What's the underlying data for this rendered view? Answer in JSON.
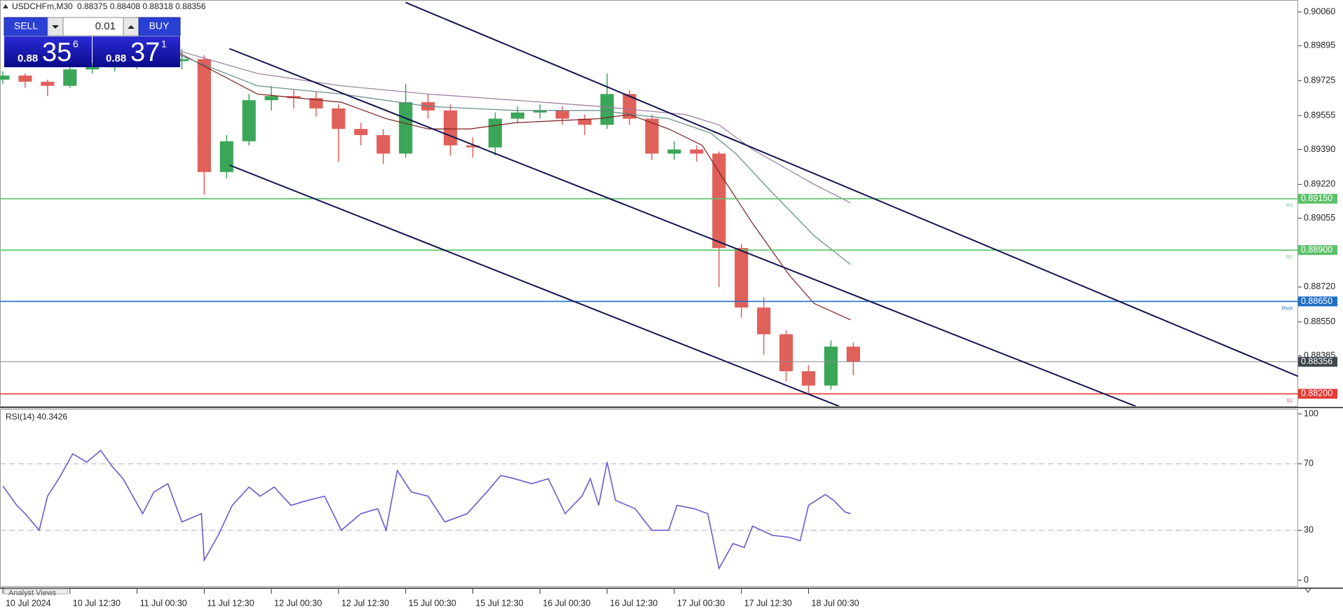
{
  "header": {
    "symbol": "USDCHFm,M30",
    "ohlc": "0.88375 0.88408 0.88318 0.88356"
  },
  "trade_panel": {
    "sell_label": "SELL",
    "buy_label": "BUY",
    "lot": "0.01",
    "sell_price": {
      "big": "0.88",
      "pips": "35",
      "fraction": "6"
    },
    "buy_price": {
      "big": "0.88",
      "pips": "37",
      "fraction": "1"
    }
  },
  "tabs": [
    "Analyst Views"
  ],
  "chart_data": [
    {
      "type": "candlestick",
      "x": [
        0,
        8,
        16,
        24,
        32,
        40,
        48,
        56,
        64,
        72,
        80,
        88,
        96,
        104,
        112,
        120,
        128,
        136,
        144,
        152,
        160,
        168,
        176,
        184,
        192,
        200,
        208,
        216,
        224,
        232,
        240,
        248,
        256,
        264,
        272,
        280,
        288,
        296,
        304
      ],
      "open": [
        0.8973,
        0.8975,
        0.8972,
        0.897,
        0.8978,
        0.8979,
        0.898,
        0.8981,
        0.8982,
        0.8983,
        0.8928,
        0.8943,
        0.8963,
        0.8965,
        0.8964,
        0.8959,
        0.8949,
        0.8946,
        0.8937,
        0.8962,
        0.8958,
        0.8941,
        0.894,
        0.8954,
        0.8957,
        0.8958,
        0.8954,
        0.8951,
        0.8966,
        0.8954,
        0.8937,
        0.8939,
        0.8937,
        0.8891,
        0.8862,
        0.8849,
        0.8831,
        0.8824,
        0.8843
      ],
      "high": [
        0.8977,
        0.8976,
        0.8973,
        0.8979,
        0.8981,
        0.8982,
        0.8983,
        0.8985,
        0.8988,
        0.8985,
        0.8946,
        0.8966,
        0.897,
        0.8968,
        0.8967,
        0.8961,
        0.8952,
        0.8949,
        0.8971,
        0.8966,
        0.8961,
        0.8945,
        0.8957,
        0.896,
        0.8961,
        0.896,
        0.8956,
        0.8976,
        0.8968,
        0.8956,
        0.8943,
        0.8941,
        0.8938,
        0.8893,
        0.8867,
        0.8851,
        0.8834,
        0.8846,
        0.8845
      ],
      "low": [
        0.8971,
        0.8969,
        0.8965,
        0.8969,
        0.8976,
        0.8977,
        0.8978,
        0.8979,
        0.8978,
        0.8917,
        0.8925,
        0.8941,
        0.8958,
        0.8959,
        0.8955,
        0.8933,
        0.8941,
        0.8932,
        0.8935,
        0.8954,
        0.8936,
        0.8935,
        0.8936,
        0.8952,
        0.8954,
        0.8951,
        0.8946,
        0.8949,
        0.8951,
        0.8934,
        0.8934,
        0.8933,
        0.8872,
        0.8857,
        0.8839,
        0.8826,
        0.882,
        0.8822,
        0.8829
      ],
      "close": [
        0.8975,
        0.8972,
        0.897,
        0.8978,
        0.8979,
        0.898,
        0.8981,
        0.8982,
        0.8983,
        0.8928,
        0.8943,
        0.8963,
        0.8965,
        0.8964,
        0.8959,
        0.8949,
        0.8946,
        0.8937,
        0.8962,
        0.8958,
        0.8941,
        0.894,
        0.8954,
        0.8957,
        0.8958,
        0.8954,
        0.8951,
        0.8966,
        0.8954,
        0.8937,
        0.8939,
        0.8937,
        0.8891,
        0.8862,
        0.8849,
        0.8831,
        0.8824,
        0.8843,
        0.88356
      ],
      "up_color": "#3aa657",
      "down_color": "#e0605a",
      "moving_averages": [
        {
          "color": "#7a1e1e",
          "x": [
            63,
            91,
            121,
            137,
            152,
            167,
            183,
            213,
            224,
            238,
            250,
            256,
            268,
            281,
            290,
            303
          ],
          "values": [
            0.8986,
            0.8966,
            0.8962,
            0.8954,
            0.8949,
            0.8949,
            0.8952,
            0.8954,
            0.8956,
            0.8949,
            0.8941,
            0.8928,
            0.8903,
            0.8878,
            0.8864,
            0.8856
          ]
        },
        {
          "color": "#5f8a86",
          "x": [
            63,
            91,
            121,
            152,
            183,
            213,
            238,
            253,
            262,
            275,
            290,
            303
          ],
          "values": [
            0.8985,
            0.897,
            0.8966,
            0.896,
            0.8958,
            0.8958,
            0.8954,
            0.8947,
            0.8937,
            0.8918,
            0.8897,
            0.8883
          ]
        },
        {
          "color": "#9a7aa0",
          "x": [
            63,
            91,
            121,
            152,
            183,
            213,
            244,
            256,
            268,
            290,
            303
          ],
          "values": [
            0.8987,
            0.8976,
            0.897,
            0.8966,
            0.8963,
            0.896,
            0.8956,
            0.8951,
            0.8939,
            0.8922,
            0.8913
          ]
        }
      ],
      "trendline_color": "#141450",
      "trendlines": [
        {
          "x": [
            144,
            463
          ],
          "values": [
            0.90106,
            0.88285
          ]
        },
        {
          "x": [
            81,
            405
          ],
          "values": [
            0.89881,
            0.88139
          ]
        },
        {
          "x": [
            81,
            299
          ],
          "values": [
            0.89314,
            0.88139
          ]
        }
      ],
      "levels": [
        {
          "name": "R3",
          "value": 0.8915,
          "label": "0.89150",
          "color": "#5cc26a"
        },
        {
          "name": "R2",
          "value": 0.889,
          "label": "0.88900",
          "color": "#5cc26a"
        },
        {
          "name": "Pivot",
          "value": 0.8865,
          "label": "0.88650",
          "color": "#1f6fc6"
        },
        {
          "name": "S1",
          "value": 0.882,
          "label": "0.88200",
          "color": "#e53935"
        }
      ],
      "bid": {
        "value": 0.88356,
        "label": "0.88356",
        "color": "#3b474d"
      },
      "xlim": [
        -1,
        463
      ],
      "ylim": [
        0.8814,
        0.90118
      ],
      "yticks": [
        {
          "value": 0.9006,
          "label": "0.90060"
        },
        {
          "value": 0.89895,
          "label": "0.89895"
        },
        {
          "value": 0.89725,
          "label": "0.89725"
        },
        {
          "value": 0.89555,
          "label": "0.89555"
        },
        {
          "value": 0.8939,
          "label": "0.89390"
        },
        {
          "value": 0.8922,
          "label": "0.89220"
        },
        {
          "value": 0.89055,
          "label": "0.89055"
        },
        {
          "value": 0.8872,
          "label": "0.88720"
        },
        {
          "value": 0.8855,
          "label": "0.88550"
        },
        {
          "value": 0.88385,
          "label": "0.88385"
        }
      ],
      "xticks": [
        {
          "value": 0,
          "label": "10 Jul 2024"
        },
        {
          "value": 24,
          "label": "10 Jul 12:30"
        },
        {
          "value": 48,
          "label": "11 Jul 00:30"
        },
        {
          "value": 72,
          "label": "11 Jul 12:30"
        },
        {
          "value": 96,
          "label": "12 Jul 00:30"
        },
        {
          "value": 120,
          "label": "12 Jul 12:30"
        },
        {
          "value": 144,
          "label": "15 Jul 00:30"
        },
        {
          "value": 168,
          "label": "15 Jul 12:30"
        },
        {
          "value": 192,
          "label": "16 Jul 00:30"
        },
        {
          "value": 216,
          "label": "16 Jul 12:30"
        },
        {
          "value": 240,
          "label": "17 Jul 00:30"
        },
        {
          "value": 264,
          "label": "17 Jul 12:30"
        },
        {
          "value": 288,
          "label": "18 Jul 00:30"
        }
      ]
    },
    {
      "type": "line",
      "title": "RSI(14) 40.3426",
      "color": "#6a5acd",
      "x": [
        0,
        5,
        8,
        13,
        16,
        20,
        25,
        30,
        35,
        39,
        43,
        50,
        54,
        59,
        64,
        71,
        72,
        77,
        82,
        88,
        92,
        97,
        103,
        109,
        115,
        121,
        128,
        134,
        137,
        141,
        146,
        152,
        158,
        166,
        173,
        178,
        183,
        189,
        195,
        201,
        207,
        210,
        213,
        216,
        219,
        226,
        232,
        238,
        241,
        247,
        252,
        256,
        261,
        265,
        268,
        275,
        281,
        285,
        288,
        294,
        297,
        301,
        303
      ],
      "values": [
        56.7,
        45,
        40,
        30,
        50.5,
        61,
        76,
        71,
        78,
        68.6,
        61,
        40,
        53,
        58,
        35,
        40,
        12,
        27,
        45,
        56,
        50.5,
        56,
        45,
        48,
        50.5,
        30,
        40,
        43,
        30,
        66,
        53,
        50.5,
        35,
        40,
        53,
        63,
        61,
        58,
        61,
        40,
        50.5,
        61,
        45,
        71,
        48,
        43,
        30,
        30,
        45,
        43,
        40,
        7,
        22,
        19.6,
        32.5,
        27,
        25.8,
        23.7,
        45,
        51.5,
        48,
        41,
        40
      ],
      "xlim": [
        -1,
        463
      ],
      "ylim": [
        -4,
        103
      ],
      "yticks": [
        100,
        70,
        30,
        0
      ],
      "levels": [
        70,
        30
      ],
      "level_color": "#c9a3c4"
    }
  ]
}
